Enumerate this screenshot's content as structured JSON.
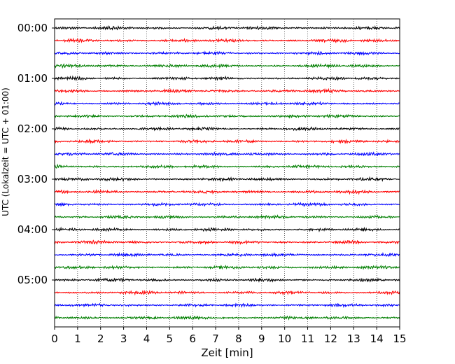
{
  "chart_data": {
    "type": "line",
    "title": "",
    "xlabel": "Zeit  [min]",
    "ylabel": "UTC (Lokalzeit = UTC + 01:00)",
    "xlim": [
      0,
      15
    ],
    "x_ticks": [
      "0",
      "1",
      "2",
      "3",
      "4",
      "5",
      "6",
      "7",
      "8",
      "9",
      "10",
      "11",
      "12",
      "13",
      "14",
      "15"
    ],
    "y_tick_labels": [
      "00:00",
      "01:00",
      "02:00",
      "03:00",
      "04:00",
      "05:00"
    ],
    "traces_per_hour": 4,
    "trace_count": 24,
    "trace_colors": [
      "#000000",
      "#ff0000",
      "#0000ff",
      "#007f00"
    ],
    "grid": "vertical dotted",
    "legend": "none"
  }
}
